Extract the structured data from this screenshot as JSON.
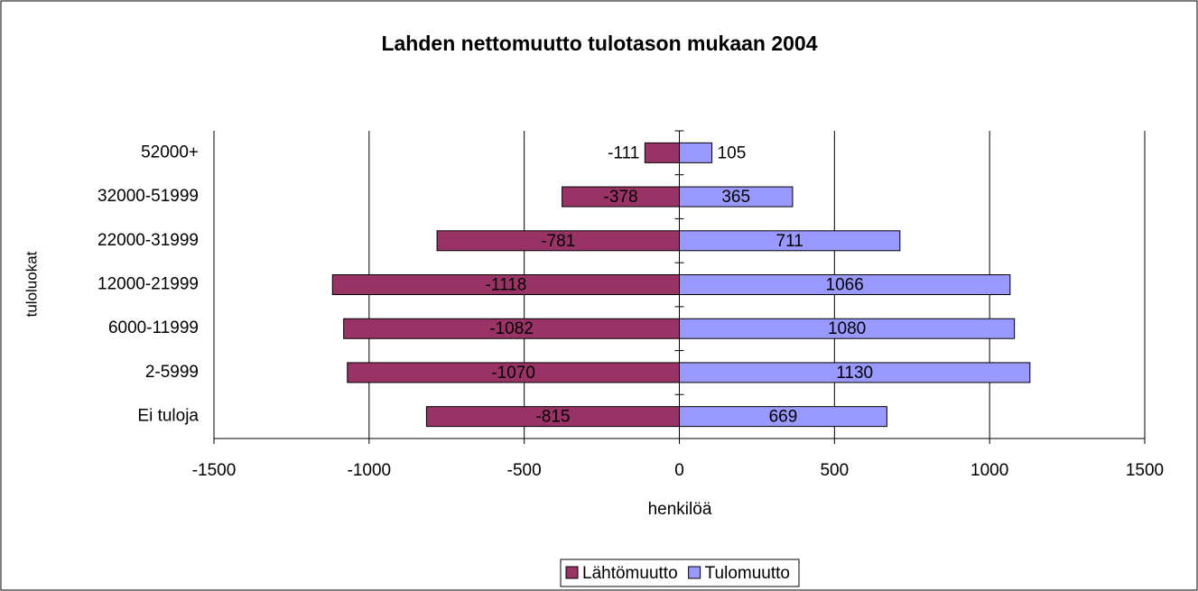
{
  "chart_data": {
    "type": "bar",
    "title": "Lahden nettomuutto tulotason mukaan 2004",
    "x_label": "henkilöä",
    "y_label": "tuloluokat",
    "categories": [
      "52000+",
      "32000-51999",
      "22000-31999",
      "12000-21999",
      "6000-11999",
      "2-5999",
      "Ei tuloja"
    ],
    "series": [
      {
        "name": "Lähtömuutto",
        "color": "#993366",
        "values": [
          -111,
          -378,
          -781,
          -1118,
          -1082,
          -1070,
          -815
        ]
      },
      {
        "name": "Tulomuutto",
        "color": "#9999ff",
        "values": [
          105,
          365,
          711,
          1066,
          1080,
          1130,
          669
        ]
      }
    ],
    "xlim": [
      -1500,
      1500
    ],
    "xticks": [
      -1500,
      -1000,
      -500,
      0,
      500,
      1000,
      1500
    ],
    "grid": true,
    "legend": "bottom"
  }
}
